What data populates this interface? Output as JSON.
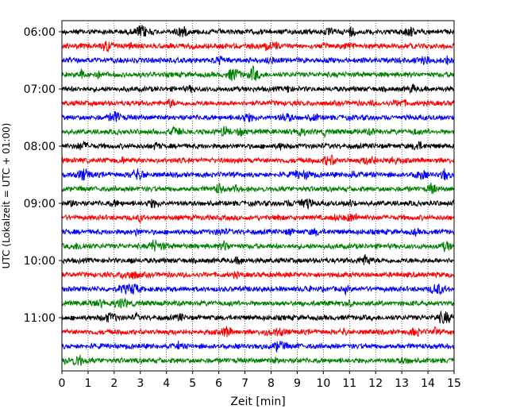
{
  "chart_data": {
    "type": "line",
    "title": "",
    "xlabel": "Zeit  [min]",
    "ylabel": "UTC (Lokalzeit = UTC + 01:00)",
    "xlim": [
      0,
      15
    ],
    "x_ticks": [
      "0",
      "1",
      "2",
      "3",
      "4",
      "5",
      "6",
      "7",
      "8",
      "9",
      "10",
      "11",
      "12",
      "13",
      "14",
      "15"
    ],
    "y_ticks": [
      "06:00",
      "07:00",
      "08:00",
      "09:00",
      "10:00",
      "11:00"
    ],
    "grid": "vertical dotted lines at every minute",
    "trace_interval_minutes": 15,
    "trace_colors": [
      "#000000",
      "#ff0000",
      "#0000ff",
      "#008000"
    ],
    "series": [
      {
        "start": "06:00",
        "color": "#000000"
      },
      {
        "start": "06:15",
        "color": "#ff0000"
      },
      {
        "start": "06:30",
        "color": "#0000ff"
      },
      {
        "start": "06:45",
        "color": "#008000"
      },
      {
        "start": "07:00",
        "color": "#000000"
      },
      {
        "start": "07:15",
        "color": "#ff0000"
      },
      {
        "start": "07:30",
        "color": "#0000ff"
      },
      {
        "start": "07:45",
        "color": "#008000"
      },
      {
        "start": "08:00",
        "color": "#000000"
      },
      {
        "start": "08:15",
        "color": "#ff0000"
      },
      {
        "start": "08:30",
        "color": "#0000ff"
      },
      {
        "start": "08:45",
        "color": "#008000"
      },
      {
        "start": "09:00",
        "color": "#000000"
      },
      {
        "start": "09:15",
        "color": "#ff0000"
      },
      {
        "start": "09:30",
        "color": "#0000ff"
      },
      {
        "start": "09:45",
        "color": "#008000"
      },
      {
        "start": "10:00",
        "color": "#000000"
      },
      {
        "start": "10:15",
        "color": "#ff0000"
      },
      {
        "start": "10:30",
        "color": "#0000ff"
      },
      {
        "start": "10:45",
        "color": "#008000"
      },
      {
        "start": "11:00",
        "color": "#000000"
      },
      {
        "start": "11:15",
        "color": "#ff0000"
      },
      {
        "start": "11:30",
        "color": "#0000ff"
      },
      {
        "start": "11:45",
        "color": "#008000"
      }
    ]
  }
}
